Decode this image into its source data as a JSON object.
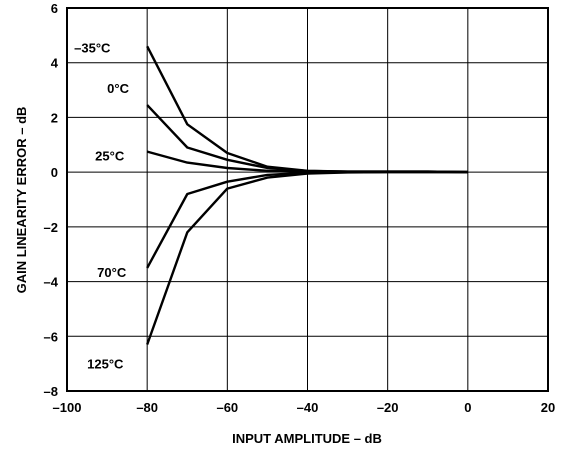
{
  "chart_data": {
    "type": "line",
    "title": "",
    "xlabel": "INPUT AMPLITUDE – dB",
    "ylabel": "GAIN LINEARITY ERROR – dB",
    "xlim": [
      -100,
      20
    ],
    "ylim": [
      -8,
      6
    ],
    "xticks": [
      -100,
      -80,
      -60,
      -40,
      -20,
      0,
      20
    ],
    "yticks": [
      -8,
      -6,
      -4,
      -2,
      0,
      2,
      4,
      6
    ],
    "xtick_labels": [
      "–100",
      "–80",
      "–60",
      "–40",
      "–20",
      "0",
      "20"
    ],
    "ytick_labels": [
      "–8",
      "–6",
      "–4",
      "–2",
      "0",
      "2",
      "4",
      "6"
    ],
    "grid": true,
    "legend": "inline labels",
    "series": [
      {
        "name": "–35°C",
        "x": [
          -80,
          -70,
          -60,
          -50,
          -40,
          -30,
          -20,
          -10,
          0
        ],
        "y": [
          4.6,
          1.75,
          0.7,
          0.2,
          0.05,
          0.02,
          0.02,
          0.02,
          0.0
        ]
      },
      {
        "name": "0°C",
        "x": [
          -80,
          -70,
          -60,
          -50,
          -40,
          -30,
          -20,
          -10,
          0
        ],
        "y": [
          2.45,
          0.9,
          0.45,
          0.15,
          0.04,
          0.02,
          0.02,
          0.02,
          0.0
        ]
      },
      {
        "name": "25°C",
        "x": [
          -80,
          -70,
          -60,
          -50,
          -40,
          -30,
          -20,
          -10,
          0
        ],
        "y": [
          0.75,
          0.35,
          0.15,
          0.05,
          0.02,
          0.01,
          0.01,
          0.01,
          0.0
        ]
      },
      {
        "name": "70°C",
        "x": [
          -80,
          -70,
          -60,
          -50,
          -40,
          -30,
          -20,
          -10,
          0
        ],
        "y": [
          -3.5,
          -0.8,
          -0.35,
          -0.1,
          -0.02,
          0.0,
          0.0,
          0.0,
          0.0
        ]
      },
      {
        "name": "125°C",
        "x": [
          -80,
          -70,
          -60,
          -50,
          -40,
          -30,
          -20,
          -10,
          0
        ],
        "y": [
          -6.3,
          -2.2,
          -0.6,
          -0.2,
          -0.05,
          -0.01,
          0.0,
          0.0,
          0.0
        ]
      }
    ]
  }
}
